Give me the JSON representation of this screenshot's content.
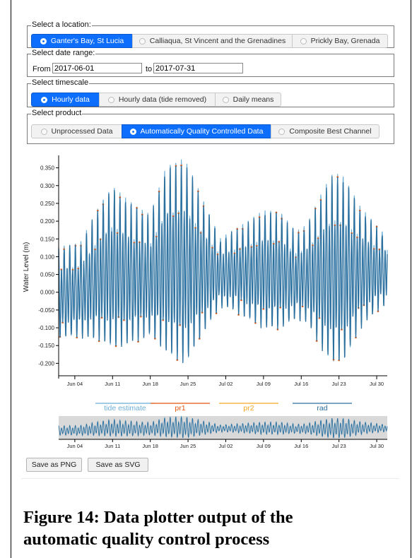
{
  "location": {
    "legend": "Select a location:",
    "options": [
      {
        "label": "Ganter's Bay, St Lucia",
        "active": true
      },
      {
        "label": "Calliaqua, St Vincent and the Grenadines",
        "active": false
      },
      {
        "label": "Prickly Bay, Grenada",
        "active": false
      }
    ]
  },
  "date_range": {
    "legend": "Select date range:",
    "from_label": "From",
    "from_value": "2017-06-01",
    "to_label": "to",
    "to_value": "2017-07-31"
  },
  "timescale": {
    "legend": "Select timescale",
    "options": [
      {
        "label": "Hourly data",
        "active": true
      },
      {
        "label": "Hourly data (tide removed)",
        "active": false
      },
      {
        "label": "Daily means",
        "active": false
      }
    ]
  },
  "product": {
    "legend": "Select product",
    "options": [
      {
        "label": "Unprocessed Data",
        "active": false
      },
      {
        "label": "Automatically Quality Controlled Data",
        "active": true
      },
      {
        "label": "Composite Best Channel",
        "active": false
      }
    ]
  },
  "chart_data": {
    "type": "line",
    "ylabel": "Water Level (m)",
    "xlabel": "",
    "ylim": [
      -0.235,
      0.385
    ],
    "yticks": [
      "0.350",
      "0.300",
      "0.250",
      "0.200",
      "0.150",
      "0.100",
      "0.050",
      "0.000",
      "-0.050",
      "-0.100",
      "-0.150",
      "-0.200"
    ],
    "xticks": [
      "Jun 04",
      "Jun 11",
      "Jun 18",
      "Jun 25",
      "Jul 02",
      "Jul 09",
      "Jul 16",
      "Jul 23",
      "Jul 30"
    ],
    "x_range": [
      "2017-06-01",
      "2017-07-31"
    ],
    "series": [
      {
        "name": "tide estimate",
        "color": "#6baed6"
      },
      {
        "name": "pr1",
        "color": "#e6550d"
      },
      {
        "name": "pr2",
        "color": "#f5a623"
      },
      {
        "name": "rad",
        "color": "#2b6f9e"
      }
    ],
    "envelope_daily": {
      "dates": [
        "2017-06-01",
        "2017-06-05",
        "2017-06-09",
        "2017-06-11",
        "2017-06-14",
        "2017-06-18",
        "2017-06-21",
        "2017-06-24",
        "2017-06-25",
        "2017-06-27",
        "2017-07-01",
        "2017-07-03",
        "2017-07-06",
        "2017-07-09",
        "2017-07-12",
        "2017-07-15",
        "2017-07-17",
        "2017-07-20",
        "2017-07-22",
        "2017-07-24",
        "2017-07-27",
        "2017-07-31"
      ],
      "max": [
        0.13,
        0.14,
        0.26,
        0.3,
        0.26,
        0.22,
        0.36,
        0.38,
        0.36,
        0.29,
        0.15,
        0.17,
        0.2,
        0.23,
        0.23,
        0.17,
        0.19,
        0.29,
        0.34,
        0.33,
        0.24,
        0.17
      ],
      "min": [
        -0.14,
        -0.14,
        -0.16,
        -0.18,
        -0.17,
        -0.14,
        -0.2,
        -0.23,
        -0.22,
        -0.16,
        -0.05,
        -0.06,
        -0.09,
        -0.12,
        -0.12,
        -0.09,
        -0.1,
        -0.19,
        -0.23,
        -0.22,
        -0.12,
        -0.05
      ]
    }
  },
  "legend_items": [
    "tide estimate",
    "pr1",
    "pr2",
    "rad"
  ],
  "buttons": {
    "save_png": "Save as PNG",
    "save_svg": "Save as SVG"
  },
  "caption": {
    "line1": "Figure 14:  Data plotter output of the",
    "line2": "automatic quality control process"
  }
}
